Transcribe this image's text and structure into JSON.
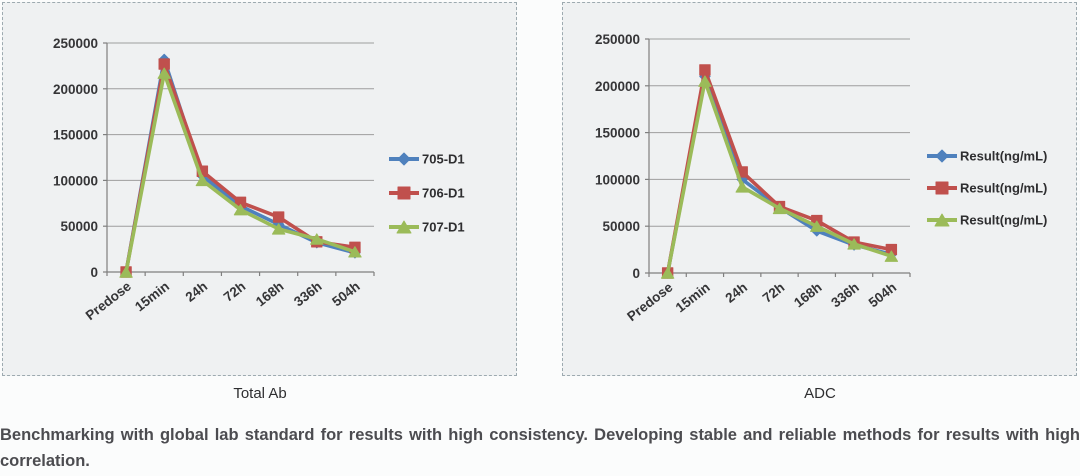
{
  "caption": {
    "text": "Benchmarking with global lab standard for results with high consistency. Developing stable and reliable methods for results with high correlation."
  },
  "chart_data": [
    {
      "type": "line",
      "title": "Total Ab",
      "categories": [
        "Predose",
        "15min",
        "24h",
        "72h",
        "168h",
        "336h",
        "504h"
      ],
      "series": [
        {
          "name": "705-D1",
          "color": "#4f81bd",
          "marker": "diamond",
          "values": [
            0,
            232000,
            105000,
            72000,
            52000,
            32000,
            21000
          ]
        },
        {
          "name": "706-D1",
          "color": "#c0504d",
          "marker": "square",
          "values": [
            0,
            227000,
            110000,
            76000,
            60000,
            33000,
            27000
          ]
        },
        {
          "name": "707-D1",
          "color": "#9bbb59",
          "marker": "triangle",
          "values": [
            0,
            217000,
            100000,
            68000,
            47000,
            36000,
            22000
          ]
        }
      ],
      "ylim": [
        0,
        250000
      ],
      "yticks": [
        0,
        50000,
        100000,
        150000,
        200000,
        250000
      ],
      "grid": true,
      "legend_position": "right"
    },
    {
      "type": "line",
      "title": "ADC",
      "categories": [
        "Predose",
        "15min",
        "24h",
        "72h",
        "168h",
        "336h",
        "504h"
      ],
      "series": [
        {
          "name": "Result(ng/mL)",
          "color": "#4f81bd",
          "marker": "diamond",
          "values": [
            0,
            210000,
            100000,
            70000,
            45000,
            30000,
            20000
          ]
        },
        {
          "name": "Result(ng/mL)",
          "color": "#c0504d",
          "marker": "square",
          "values": [
            0,
            217000,
            108000,
            71000,
            56000,
            33000,
            25000
          ]
        },
        {
          "name": "Result(ng/mL)",
          "color": "#9bbb59",
          "marker": "triangle",
          "values": [
            0,
            205000,
            92000,
            69000,
            50000,
            31000,
            18000
          ]
        }
      ],
      "ylim": [
        0,
        250000
      ],
      "yticks": [
        0,
        50000,
        100000,
        150000,
        200000,
        250000
      ],
      "grid": true,
      "legend_position": "right"
    }
  ]
}
